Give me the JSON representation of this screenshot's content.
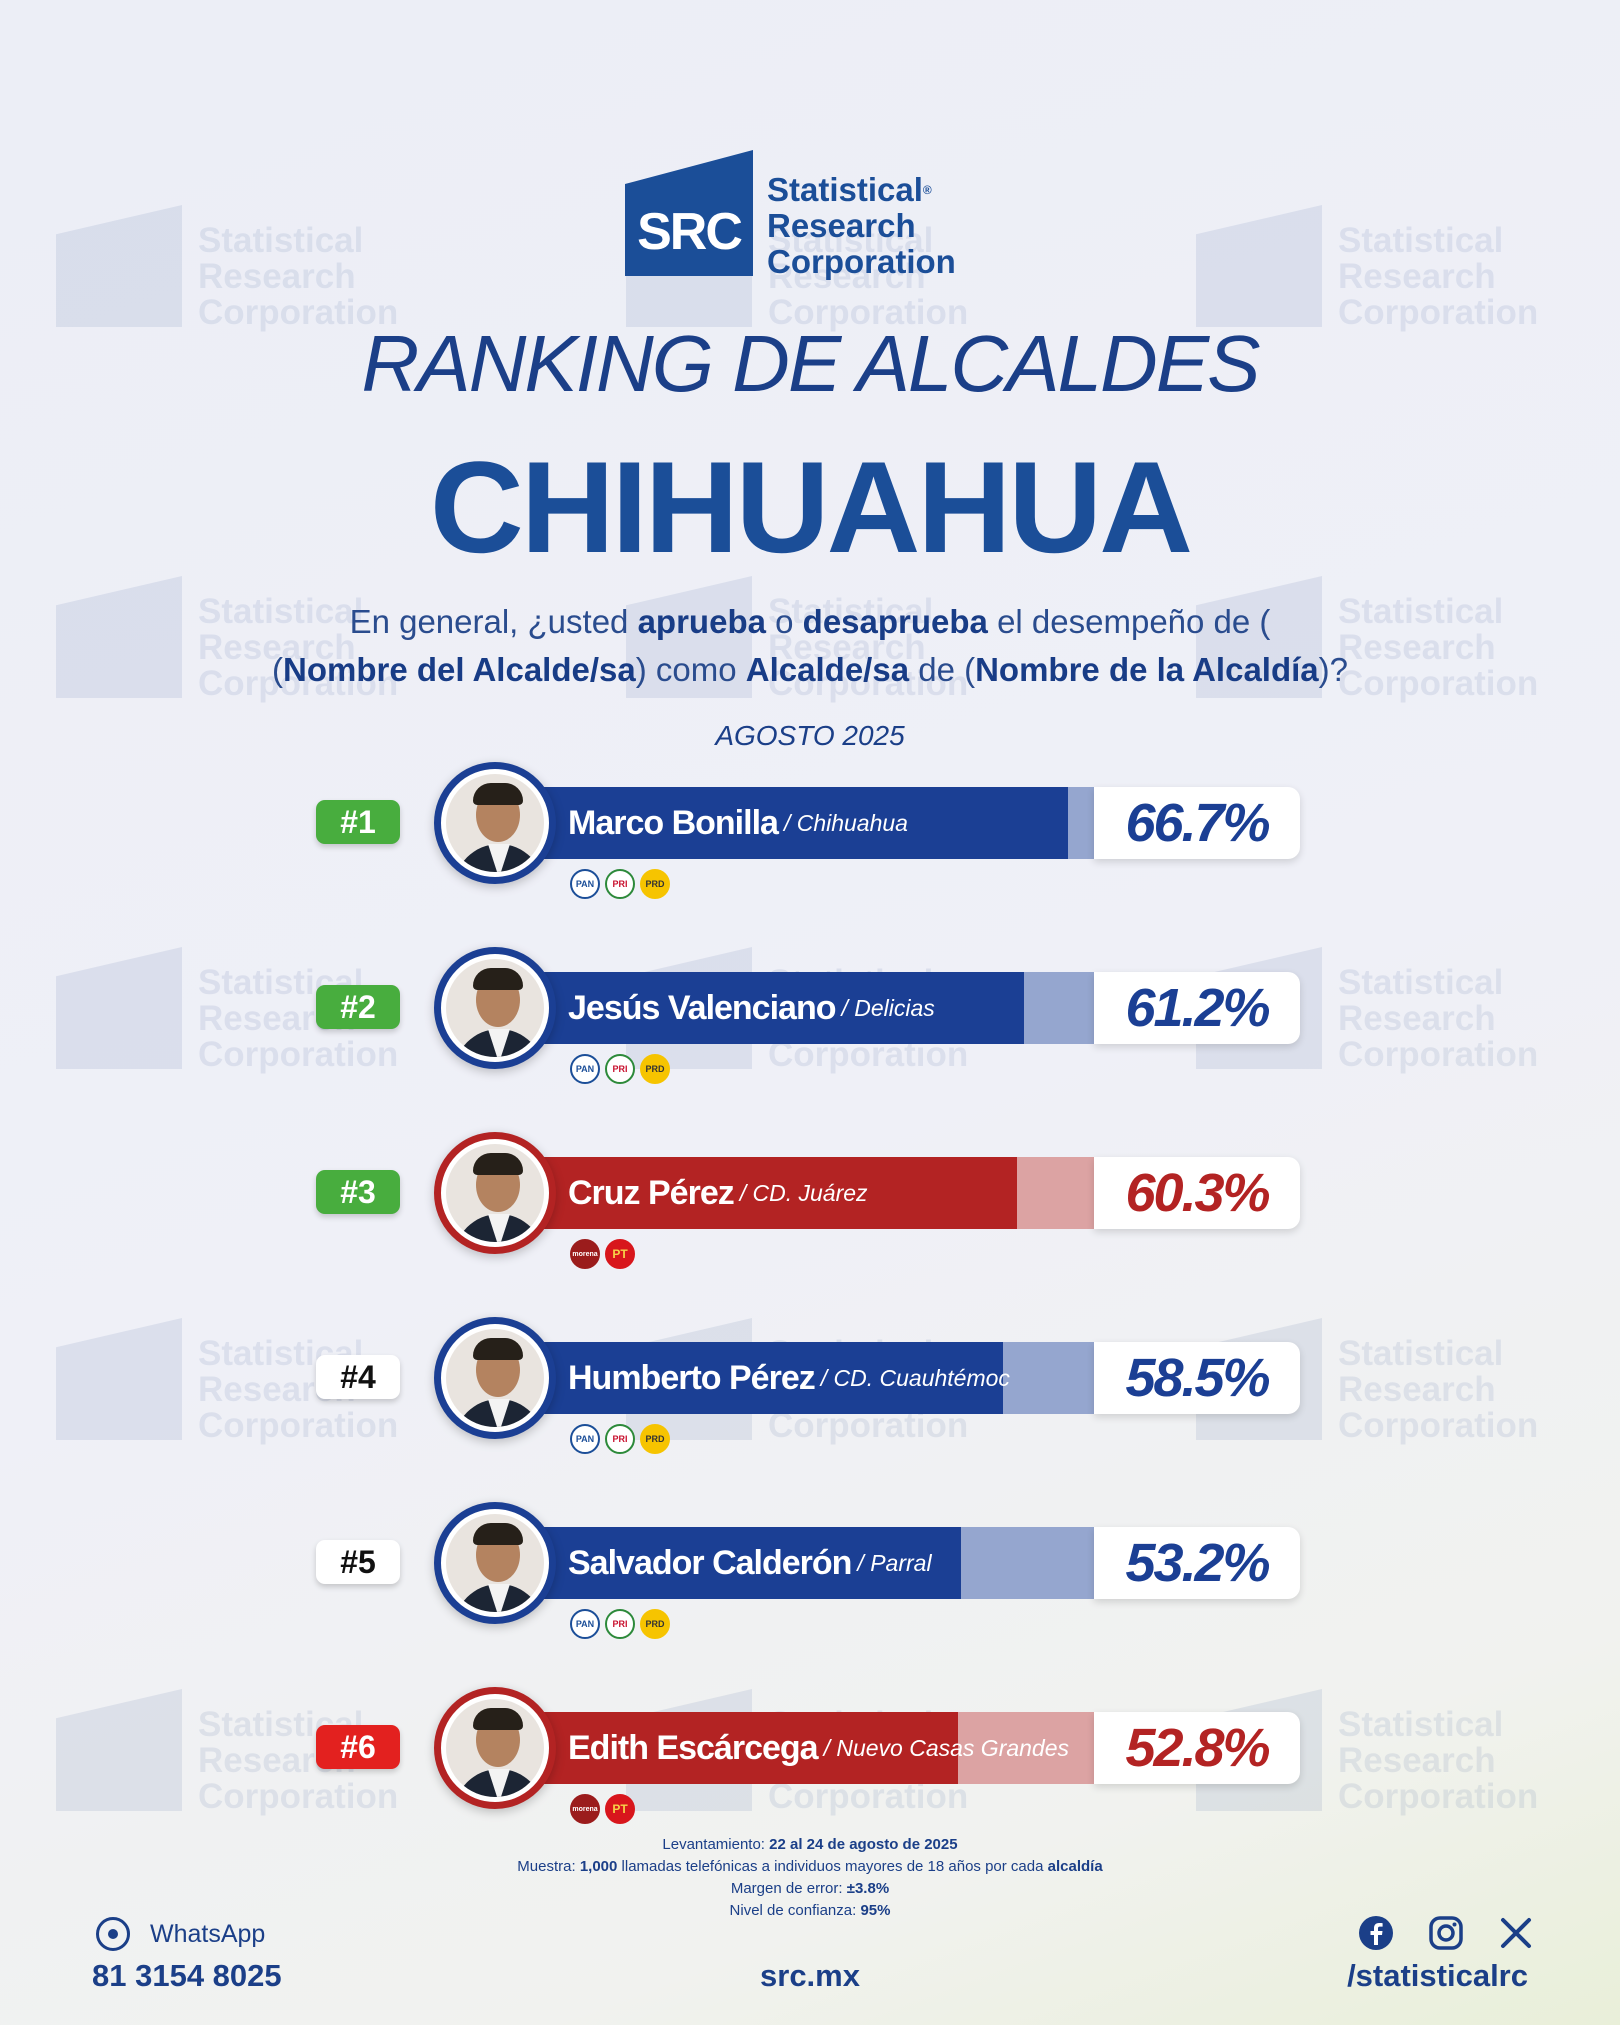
{
  "brand": {
    "logo_abbr": "SRC",
    "line1": "Statistical",
    "line2": "Research",
    "line3": "Corporation",
    "registered": "®"
  },
  "header": {
    "title": "RANKING DE ALCALDES",
    "subtitle": "CHIHUAHUA",
    "question": {
      "p1": "En general, ¿usted ",
      "b1": "aprueba",
      "p2": " o ",
      "b2": "desaprueba",
      "p3": " el desempeño de (",
      "b3": "Nombre del Alcalde/sa",
      "p4": ") como ",
      "b4": "Alcalde/sa",
      "p5": " de (",
      "b5": "Nombre de la Alcaldía",
      "p6": ")?"
    },
    "date": "AGOSTO 2025"
  },
  "colors": {
    "blue": "#1b3f94",
    "blue_light": "#95a6cf",
    "red": "#b32323",
    "red_light": "#dca3a3",
    "rank_green": "#48ad3e",
    "rank_red": "#e3211f",
    "rank_white": "#ffffff"
  },
  "chart_data": {
    "type": "bar",
    "categories": [
      "Marco Bonilla",
      "Jesús Valenciano",
      "Cruz Pérez",
      "Humberto Pérez",
      "Salvador Calderón",
      "Edith Escárcega"
    ],
    "values": [
      66.7,
      61.2,
      60.3,
      58.5,
      53.2,
      52.8
    ],
    "unit": "%",
    "rows": [
      {
        "rank": "#1",
        "name": "Marco Bonilla",
        "city": "/ Chihuahua",
        "value": 66.7,
        "label": "66.7%",
        "coalition": "blue",
        "rank_style": "green",
        "parties": [
          "PAN",
          "PRI",
          "PRD"
        ]
      },
      {
        "rank": "#2",
        "name": "Jesús Valenciano",
        "city": "/ Delicias",
        "value": 61.2,
        "label": "61.2%",
        "coalition": "blue",
        "rank_style": "green",
        "parties": [
          "PAN",
          "PRI",
          "PRD"
        ]
      },
      {
        "rank": "#3",
        "name": "Cruz Pérez",
        "city": "/ CD. Juárez",
        "value": 60.3,
        "label": "60.3%",
        "coalition": "red",
        "rank_style": "green",
        "parties": [
          "morena",
          "PT"
        ]
      },
      {
        "rank": "#4",
        "name": "Humberto Pérez",
        "city": "/ CD. Cuauhtémoc",
        "value": 58.5,
        "label": "58.5%",
        "coalition": "blue",
        "rank_style": "white",
        "parties": [
          "PAN",
          "PRI",
          "PRD"
        ]
      },
      {
        "rank": "#5",
        "name": "Salvador Calderón",
        "city": "/ Parral",
        "value": 53.2,
        "label": "53.2%",
        "coalition": "blue",
        "rank_style": "white",
        "parties": [
          "PAN",
          "PRI",
          "PRD"
        ]
      },
      {
        "rank": "#6",
        "name": "Edith Escárcega",
        "city": "/ Nuevo Casas Grandes",
        "value": 52.8,
        "label": "52.8%",
        "coalition": "red",
        "rank_style": "red",
        "parties": [
          "morena",
          "PT"
        ]
      }
    ]
  },
  "methodology": {
    "l1_label": "Levantamiento: ",
    "l1_value": "22 al 24 de agosto de 2025",
    "l2_label": "Muestra: ",
    "l2_value": "1,000",
    "l2_text": " llamadas telefónicas a individuos mayores de 18 años por cada ",
    "l2_value2": "alcaldía",
    "l3_label": "Margen de error: ",
    "l3_value": "±3.8%",
    "l4_label": "Nivel de confianza: ",
    "l4_value": "95%"
  },
  "footer": {
    "whatsapp_label": "WhatsApp",
    "phone": "81 3154 8025",
    "website": "src.mx",
    "social_handle": "/statisticalrc",
    "social_icons": [
      "facebook-icon",
      "instagram-icon",
      "x-icon"
    ]
  }
}
